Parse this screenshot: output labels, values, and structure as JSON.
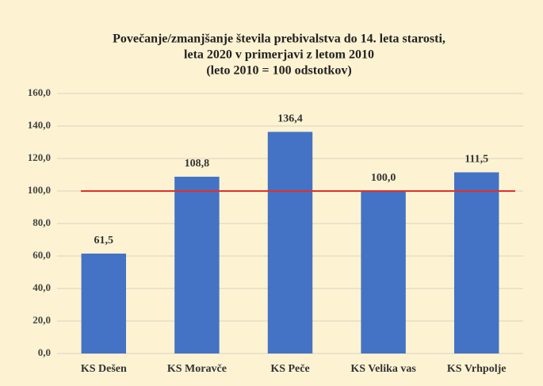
{
  "chart_data": {
    "type": "bar",
    "title": [
      "Povečanje/zmanjšanje števila prebivalstva do 14. leta starosti,",
      "leta 2020 v primerjavi  z letom 2010",
      "(leto 2010 = 100 odstotkov)"
    ],
    "categories": [
      "KS Dešen",
      "KS Moravče",
      "KS Peče",
      "KS Velika vas",
      "KS Vrhpolje"
    ],
    "values": [
      61.5,
      108.8,
      136.4,
      100.0,
      111.5
    ],
    "value_labels": [
      "61,5",
      "108,8",
      "136,4",
      "100,0",
      "111,5"
    ],
    "color": "#4472c4",
    "ylim": [
      0,
      160
    ],
    "yticks": [
      {
        "value": 0,
        "label": "0,0"
      },
      {
        "value": 20,
        "label": "20,0"
      },
      {
        "value": 40,
        "label": "40,0"
      },
      {
        "value": 60,
        "label": "60,0"
      },
      {
        "value": 80,
        "label": "80,0"
      },
      {
        "value": 100,
        "label": "100,0"
      },
      {
        "value": 120,
        "label": "120,0"
      },
      {
        "value": 140,
        "label": "140,0"
      },
      {
        "value": 160,
        "label": "160,0"
      }
    ],
    "grid": true,
    "reference_line": {
      "value": 100,
      "color": "#e0302a"
    }
  }
}
